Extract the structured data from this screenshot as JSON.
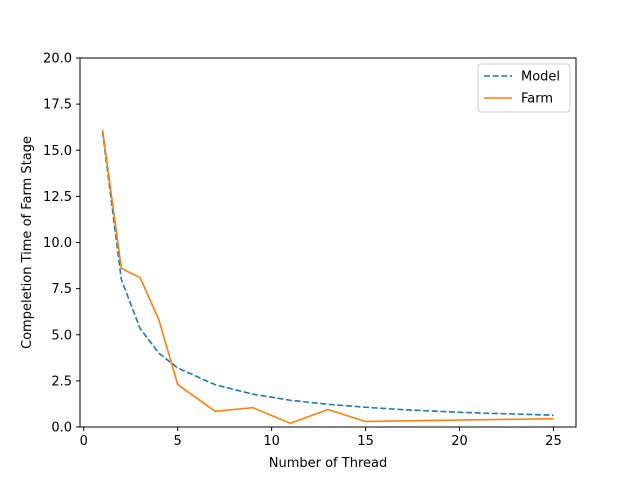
{
  "chart_data": {
    "type": "line",
    "title": "",
    "xlabel": "Number of Thread",
    "ylabel": "Compeletion Time of Farm Stage",
    "xlim": [
      -0.2,
      26.2
    ],
    "ylim": [
      0,
      20
    ],
    "xticks": [
      0,
      5,
      10,
      15,
      20,
      25
    ],
    "yticks": [
      0.0,
      2.5,
      5.0,
      7.5,
      10.0,
      12.5,
      15.0,
      17.5,
      20.0
    ],
    "xtick_labels": [
      "0",
      "5",
      "10",
      "15",
      "20",
      "25"
    ],
    "ytick_labels": [
      "0.0",
      "2.5",
      "5.0",
      "7.5",
      "10.0",
      "12.5",
      "15.0",
      "17.5",
      "20.0"
    ],
    "grid": false,
    "legend_position": "top-right",
    "series": [
      {
        "name": "Model",
        "color": "#1f77b4",
        "style": "dashed",
        "x": [
          1,
          2,
          3,
          4,
          5,
          7,
          9,
          11,
          13,
          15,
          17,
          19,
          21,
          23,
          25
        ],
        "y": [
          16.0,
          8.0,
          5.33,
          4.0,
          3.2,
          2.29,
          1.78,
          1.45,
          1.23,
          1.07,
          0.94,
          0.84,
          0.76,
          0.7,
          0.64
        ]
      },
      {
        "name": "Farm",
        "color": "#ff7f0e",
        "style": "solid",
        "x": [
          1,
          2,
          3,
          4,
          5,
          7,
          9,
          11,
          13,
          15,
          25
        ],
        "y": [
          16.1,
          8.6,
          8.1,
          5.8,
          2.3,
          0.85,
          1.05,
          0.2,
          0.95,
          0.3,
          0.45
        ]
      }
    ]
  }
}
